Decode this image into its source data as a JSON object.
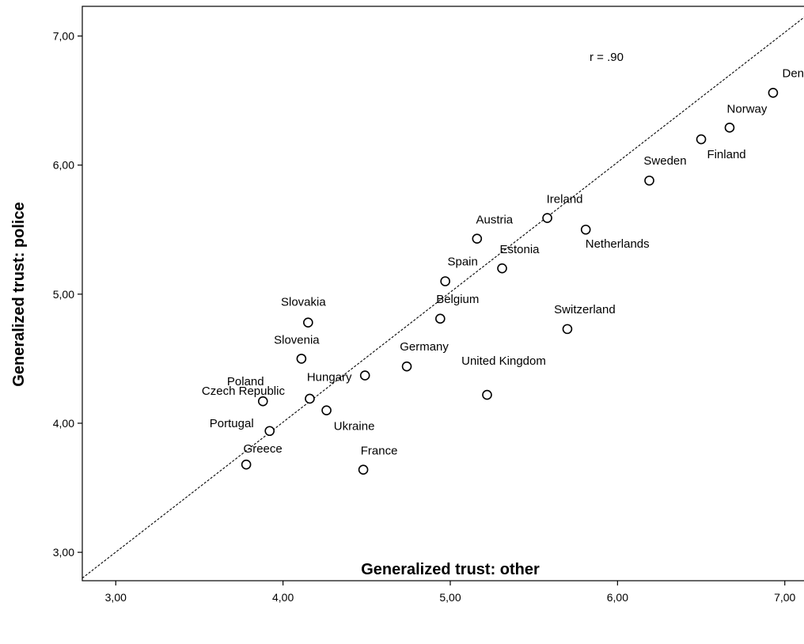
{
  "chart_data": {
    "type": "scatter",
    "title": "",
    "xlabel": "Generalized trust: other",
    "ylabel": "Generalized trust: police",
    "xlim": [
      2.8,
      7.2
    ],
    "ylim": [
      2.78,
      7.23
    ],
    "x_ticks": [
      3.0,
      4.0,
      5.0,
      6.0,
      7.0
    ],
    "x_tick_labels": [
      "3,00",
      "4,00",
      "5,00",
      "6,00",
      "7,00"
    ],
    "y_ticks": [
      3.0,
      4.0,
      5.0,
      6.0,
      7.0
    ],
    "y_tick_labels": [
      "3,00",
      "4,00",
      "5,00",
      "6,00",
      "7,00"
    ],
    "grid": false,
    "legend": "none",
    "annotation": "r = .90",
    "reference_line": {
      "style": "dashed",
      "from": [
        2.8,
        2.8
      ],
      "to": [
        7.2,
        7.23
      ]
    },
    "points": [
      {
        "label": "Denmark",
        "x": 6.93,
        "y": 6.56
      },
      {
        "label": "Norway",
        "x": 6.67,
        "y": 6.29
      },
      {
        "label": "Finland",
        "x": 6.5,
        "y": 6.2
      },
      {
        "label": "Sweden",
        "x": 6.19,
        "y": 5.88
      },
      {
        "label": "Ireland",
        "x": 5.58,
        "y": 5.59
      },
      {
        "label": "Netherlands",
        "x": 5.81,
        "y": 5.5
      },
      {
        "label": "Austria",
        "x": 5.16,
        "y": 5.43
      },
      {
        "label": "Estonia",
        "x": 5.31,
        "y": 5.2
      },
      {
        "label": "Spain",
        "x": 4.97,
        "y": 5.1
      },
      {
        "label": "Belgium",
        "x": 4.94,
        "y": 4.81
      },
      {
        "label": "Switzerland",
        "x": 5.7,
        "y": 4.73
      },
      {
        "label": "Slovakia",
        "x": 4.15,
        "y": 4.78
      },
      {
        "label": "Slovenia",
        "x": 4.11,
        "y": 4.5
      },
      {
        "label": "Germany",
        "x": 4.74,
        "y": 4.44
      },
      {
        "label": "Hungary",
        "x": 4.49,
        "y": 4.37
      },
      {
        "label": "United Kingdom",
        "x": 5.22,
        "y": 4.22
      },
      {
        "label": "Czech Republic",
        "x": 4.16,
        "y": 4.19
      },
      {
        "label": "Poland",
        "x": 3.88,
        "y": 4.17
      },
      {
        "label": "Ukraine",
        "x": 4.26,
        "y": 4.1
      },
      {
        "label": "Portugal",
        "x": 3.92,
        "y": 3.94
      },
      {
        "label": "Greece",
        "x": 3.78,
        "y": 3.68
      },
      {
        "label": "France",
        "x": 4.48,
        "y": 3.64
      }
    ]
  }
}
